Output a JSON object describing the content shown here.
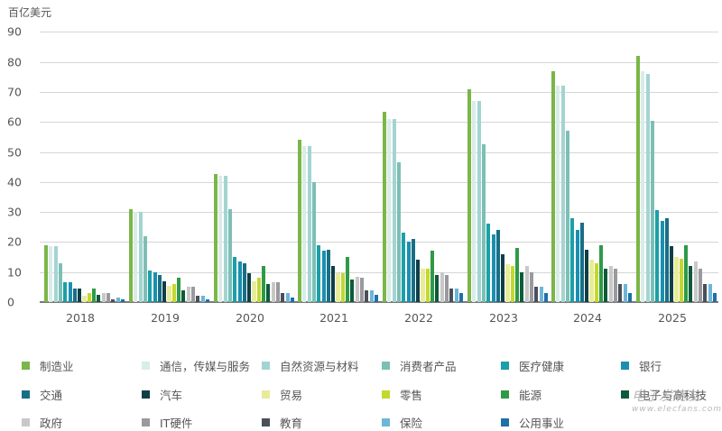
{
  "chart_data": {
    "type": "bar",
    "title": "",
    "ylabel": "百亿美元",
    "xlabel": "",
    "ylim": [
      0,
      90
    ],
    "yticks": [
      0,
      10,
      20,
      30,
      40,
      50,
      60,
      70,
      80,
      90
    ],
    "grid": true,
    "legend_position": "bottom",
    "categories": [
      "2018",
      "2019",
      "2020",
      "2021",
      "2022",
      "2023",
      "2024",
      "2025"
    ],
    "series": [
      {
        "name": "制造业",
        "color": "#7ab648",
        "values": [
          19,
          31,
          42.5,
          54,
          63.5,
          71,
          77,
          82
        ]
      },
      {
        "name": "通信，传媒与服务",
        "color": "#d9ece8",
        "values": [
          18.5,
          30,
          42,
          52,
          61,
          67,
          72,
          77
        ]
      },
      {
        "name": "自然资源与材料",
        "color": "#a3d4d2",
        "values": [
          18.5,
          30,
          42,
          52,
          61,
          67,
          72,
          76
        ]
      },
      {
        "name": "消费者产品",
        "color": "#7dbfb5",
        "values": [
          13,
          22,
          31,
          40,
          46.5,
          52.5,
          57,
          60.5
        ]
      },
      {
        "name": "医疗健康",
        "color": "#1aa0a8",
        "values": [
          6.5,
          10.5,
          15,
          19,
          23,
          26,
          28,
          30.5
        ]
      },
      {
        "name": "银行",
        "color": "#1b8fb0",
        "values": [
          6.5,
          10,
          13.5,
          17,
          20,
          22.5,
          24,
          27
        ]
      },
      {
        "name": "交通",
        "color": "#176f86",
        "values": [
          4.5,
          9,
          13,
          17.5,
          21,
          24,
          26.5,
          28
        ]
      },
      {
        "name": "汽车",
        "color": "#0f3f47",
        "values": [
          4.5,
          7,
          9.5,
          12,
          14,
          16,
          17.5,
          18.5
        ]
      },
      {
        "name": "贸易",
        "color": "#e8eb9a",
        "values": [
          2,
          5.5,
          7,
          9.5,
          11,
          12.5,
          14,
          15
        ]
      },
      {
        "name": "零售",
        "color": "#c4d82e",
        "values": [
          3,
          6,
          8,
          9.5,
          11,
          12,
          13,
          14.5
        ]
      },
      {
        "name": "能源",
        "color": "#2e9a48",
        "values": [
          4.5,
          8,
          12,
          15,
          17,
          18,
          19,
          19
        ]
      },
      {
        "name": "电子与高科技",
        "color": "#0e5a3a",
        "values": [
          2.5,
          4,
          6,
          7.5,
          9,
          10,
          11,
          12
        ]
      },
      {
        "name": "政府",
        "color": "#c8c8c8",
        "values": [
          3,
          5,
          6.5,
          8.5,
          10,
          12,
          12,
          13.5
        ]
      },
      {
        "name": "IT硬件",
        "color": "#9a9a9e",
        "values": [
          3,
          5,
          6.5,
          8,
          9,
          10,
          11,
          11
        ]
      },
      {
        "name": "教育",
        "color": "#4a4f5a",
        "values": [
          1,
          2,
          3,
          4,
          4.5,
          5,
          6,
          6
        ]
      },
      {
        "name": "保险",
        "color": "#6cb6d8",
        "values": [
          1.5,
          2,
          3,
          4,
          4.5,
          5,
          6,
          6
        ]
      },
      {
        "name": "公用事业",
        "color": "#1f6fa8",
        "values": [
          1,
          1,
          1.5,
          2.5,
          3,
          3,
          3,
          3
        ]
      }
    ]
  },
  "legend": {
    "items": [
      {
        "label": "制造业",
        "color": "#7ab648"
      },
      {
        "label": "通信，传媒与服务",
        "color": "#d9ece8"
      },
      {
        "label": "自然资源与材料",
        "color": "#a3d4d2"
      },
      {
        "label": "消费者产品",
        "color": "#7dbfb5"
      },
      {
        "label": "医疗健康",
        "color": "#1aa0a8"
      },
      {
        "label": "银行",
        "color": "#1b8fb0"
      },
      {
        "label": "交通",
        "color": "#176f86"
      },
      {
        "label": "汽车",
        "color": "#0f3f47"
      },
      {
        "label": "贸易",
        "color": "#e8eb9a"
      },
      {
        "label": "零售",
        "color": "#c4d82e"
      },
      {
        "label": "能源",
        "color": "#2e9a48"
      },
      {
        "label": "电子与高科技",
        "color": "#0e5a3a"
      },
      {
        "label": "政府",
        "color": "#c8c8c8"
      },
      {
        "label": "IT硬件",
        "color": "#9a9a9e"
      },
      {
        "label": "教育",
        "color": "#4a4f5a"
      },
      {
        "label": "保险",
        "color": "#6cb6d8"
      },
      {
        "label": "公用事业",
        "color": "#1f6fa8"
      }
    ]
  },
  "watermark": {
    "line1": "电子发烧友",
    "line2": "www.elecfans.com"
  }
}
